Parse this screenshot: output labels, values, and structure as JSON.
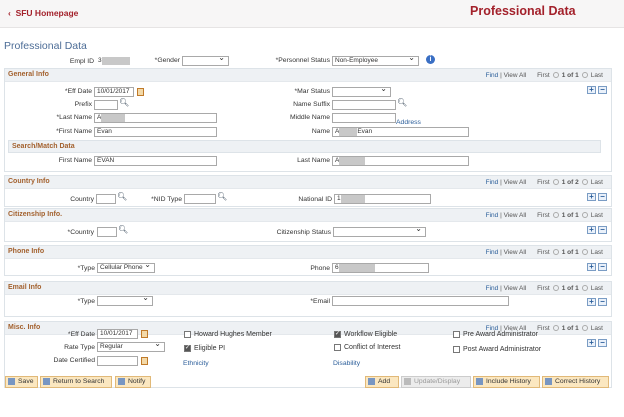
{
  "header": {
    "back_label": "SFU Homepage",
    "title": "Professional Data"
  },
  "page_heading": "Professional Data",
  "top": {
    "empl_id_label": "Empl ID",
    "empl_id_value": "3",
    "gender_label": "*Gender",
    "gender_value": "",
    "personnel_status_label": "*Personnel Status",
    "personnel_status_value": "Non-Employee"
  },
  "nav": {
    "find": "Find",
    "sep": "|",
    "view_all": "View All",
    "first": "First",
    "last": "Last"
  },
  "general": {
    "title": "General Info",
    "count": "1 of 1",
    "eff_date_label": "*Eff Date",
    "eff_date": "10/01/2017",
    "mar_status_label": "*Mar Status",
    "mar_status": "",
    "prefix_label": "Prefix",
    "prefix": "",
    "name_suffix_label": "Name Suffix",
    "name_suffix": "",
    "last_name_label": "*Last Name",
    "last_name": "A",
    "middle_name_label": "Middle Name",
    "middle_name": "",
    "address_link": "Address",
    "first_name_label": "*First Name",
    "first_name": "Evan",
    "name_label": "Name",
    "name_prefix": "A",
    "name_suffix_text": "Evan"
  },
  "search_match": {
    "title": "Search/Match Data",
    "first_name_label": "First Name",
    "first_name": "EVAN",
    "last_name_label": "Last Name",
    "last_name": "A"
  },
  "country": {
    "title": "Country Info",
    "count": "1 of 2",
    "country_label": "Country",
    "country": "",
    "nid_type_label": "*NID Type",
    "nid_type": "",
    "national_id_label": "National ID",
    "national_id": "1"
  },
  "citizenship": {
    "title": "Citizenship Info.",
    "count": "1 of 1",
    "country_label": "*Country",
    "country": "",
    "status_label": "Citizenship Status",
    "status": ""
  },
  "phone": {
    "title": "Phone Info",
    "count": "1 of 1",
    "type_label": "*Type",
    "type": "Cellular Phone",
    "phone_label": "Phone",
    "phone": "6"
  },
  "email": {
    "title": "Email Info",
    "count": "1 of 1",
    "type_label": "*Type",
    "type": "",
    "email_label": "*Email",
    "email": ""
  },
  "misc": {
    "title": "Misc. Info",
    "count": "1 of 1",
    "eff_date_label": "*Eff Date",
    "eff_date": "10/01/2017",
    "rate_type_label": "Rate Type",
    "rate_type": "Regular",
    "date_certified_label": "Date Certified",
    "date_certified": "",
    "checkboxes": [
      {
        "label": "Howard Hughes Member",
        "checked": false
      },
      {
        "label": "Eligible PI",
        "checked": true
      },
      {
        "label": "Workflow Eligible",
        "checked": true
      },
      {
        "label": "Conflict of Interest",
        "checked": false
      },
      {
        "label": "Pre Award Administrator",
        "checked": false
      },
      {
        "label": "Post Award Administrator",
        "checked": false
      }
    ],
    "ethnicity_link": "Ethnicity",
    "disability_link": "Disability"
  },
  "buttons": {
    "save": "Save",
    "return_to_search": "Return to Search",
    "notify": "Notify",
    "add": "Add",
    "update_display": "Update/Display",
    "include_history": "Include History",
    "correct_history": "Correct History"
  }
}
